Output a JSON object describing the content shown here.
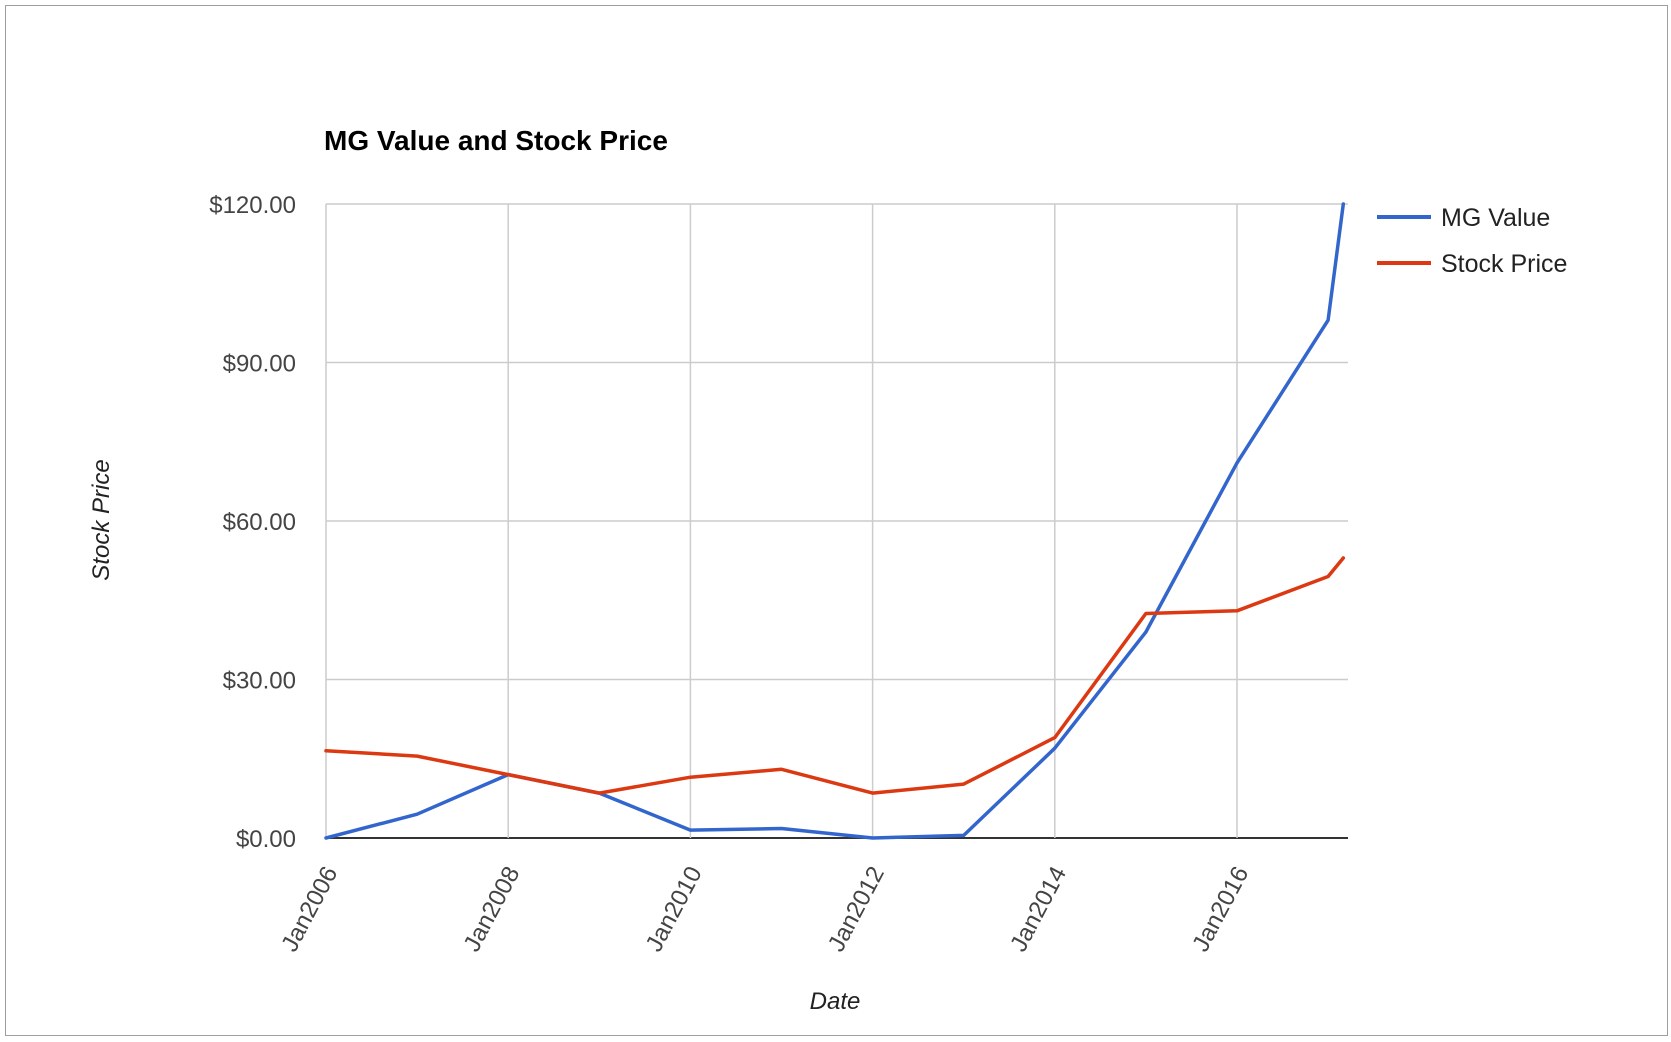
{
  "chart_data": {
    "type": "line",
    "title": "MG Value and Stock Price",
    "xlabel": "Date",
    "ylabel": "Stock Price",
    "x": [
      "2006-01",
      "2007-01",
      "2008-01",
      "2009-01",
      "2010-01",
      "2011-01",
      "2012-01",
      "2013-01",
      "2014-01",
      "2015-01",
      "2016-01",
      "2017-01",
      "2017-03"
    ],
    "x_ticks": [
      "Jan2006",
      "Jan2008",
      "Jan2010",
      "Jan2012",
      "Jan2014",
      "Jan2016"
    ],
    "y_ticks": [
      "$0.00",
      "$30.00",
      "$60.00",
      "$90.00",
      "$120.00"
    ],
    "ylim": [
      0,
      120
    ],
    "grid": true,
    "legend_position": "right",
    "series": [
      {
        "name": "MG Value",
        "color": "#3366cc",
        "values": [
          0,
          4.5,
          12,
          8.5,
          1.5,
          1.8,
          0,
          0.5,
          17,
          39,
          71,
          98,
          120
        ]
      },
      {
        "name": "Stock Price",
        "color": "#dc3912",
        "values": [
          16.5,
          15.5,
          12,
          8.5,
          11.5,
          13,
          8.5,
          10.2,
          19,
          42.5,
          43,
          49.5,
          53
        ]
      }
    ]
  }
}
